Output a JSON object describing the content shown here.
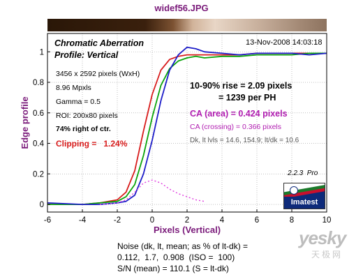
{
  "file_title": "widef56.JPG",
  "box": {
    "title": "Chromatic Aberration",
    "profile": "Profile: Vertical",
    "date": "13-Nov-2008 14:03:18",
    "specs": [
      "3456 x 2592 pixels (WxH)",
      "8.96 Mpxls",
      "Gamma = 0.5",
      "ROI: 200x80 pixels"
    ],
    "position": "74% right of ctr.",
    "clipping": "Clipping =   1.24%",
    "rise": "10-90% rise = 2.09 pixels",
    "per_ph": "= 1239 per PH",
    "ca_area": "CA (area) = 0.424 pixels",
    "ca_crossing": "CA (crossing) = 0.366 pixels",
    "levels": "Dk, lt lvls = 14.6, 154.9;  lt/dk = 10.6",
    "version": "2.2.3  Pro",
    "logo": "Imatest"
  },
  "footer": {
    "line1": "Noise (dk, lt, mean; as % of lt-dk) =",
    "line2": "0.112,  1.7,  0.908  (ISO =  100)",
    "line3": "S/N (mean) = 110.1  (S = lt-dk)"
  },
  "watermark": {
    "main": "yesky",
    "sub": "天极网"
  },
  "colors": {
    "red": "#d81c1c",
    "green": "#0aa30a",
    "blue": "#1c1cc8",
    "difference": "#e03ce0",
    "accent": "#7a1a7a"
  },
  "chart_data": {
    "type": "line",
    "xlabel": "Pixels (Vertical)",
    "ylabel": "Edge profile",
    "xlim": [
      -6,
      10
    ],
    "ylim": [
      -0.05,
      1.12
    ],
    "xticks": [
      -6,
      -4,
      -2,
      0,
      2,
      4,
      6,
      8,
      10
    ],
    "yticks": [
      0,
      0.2,
      0.4,
      0.6,
      0.8,
      1
    ],
    "grid": true,
    "series": [
      {
        "color": "red",
        "x": [
          -6,
          -4,
          -3,
          -2,
          -1.5,
          -1,
          -0.5,
          0,
          0.5,
          1,
          1.5,
          2,
          2.5,
          3,
          4,
          5,
          6,
          7,
          8,
          9,
          10
        ],
        "y": [
          0,
          0,
          0.01,
          0.03,
          0.08,
          0.22,
          0.48,
          0.72,
          0.88,
          0.95,
          0.97,
          0.98,
          0.98,
          0.98,
          0.98,
          0.98,
          0.99,
          0.99,
          0.99,
          0.99,
          0.99
        ]
      },
      {
        "color": "green",
        "x": [
          -6,
          -4,
          -3,
          -2,
          -1.5,
          -1,
          -0.5,
          0,
          0.5,
          1,
          1.5,
          2,
          2.5,
          3,
          4,
          5,
          6,
          7,
          8,
          9,
          10
        ],
        "y": [
          0,
          0,
          0.01,
          0.02,
          0.05,
          0.13,
          0.32,
          0.57,
          0.78,
          0.89,
          0.94,
          0.96,
          0.97,
          0.96,
          0.97,
          0.97,
          0.98,
          0.98,
          0.98,
          0.99,
          0.99
        ]
      },
      {
        "color": "blue",
        "x": [
          -6,
          -4,
          -3,
          -2,
          -1.5,
          -1,
          -0.5,
          0,
          0.5,
          1,
          1.5,
          2,
          2.5,
          3,
          4,
          5,
          6,
          7,
          8,
          9,
          10
        ],
        "y": [
          0.01,
          0,
          0,
          0.01,
          0.02,
          0.06,
          0.2,
          0.42,
          0.68,
          0.88,
          0.98,
          1.03,
          1.02,
          1.0,
          0.99,
          0.98,
          0.99,
          0.99,
          0.99,
          0.98,
          0.99
        ]
      },
      {
        "color": "difference",
        "x": [
          -3,
          -2,
          -1.5,
          -1,
          -0.5,
          0,
          0.5,
          1,
          1.5,
          2,
          2.5,
          3
        ],
        "y": [
          0,
          0.01,
          0.03,
          0.08,
          0.14,
          0.16,
          0.14,
          0.1,
          0.07,
          0.05,
          0.03,
          0.02
        ]
      }
    ]
  }
}
